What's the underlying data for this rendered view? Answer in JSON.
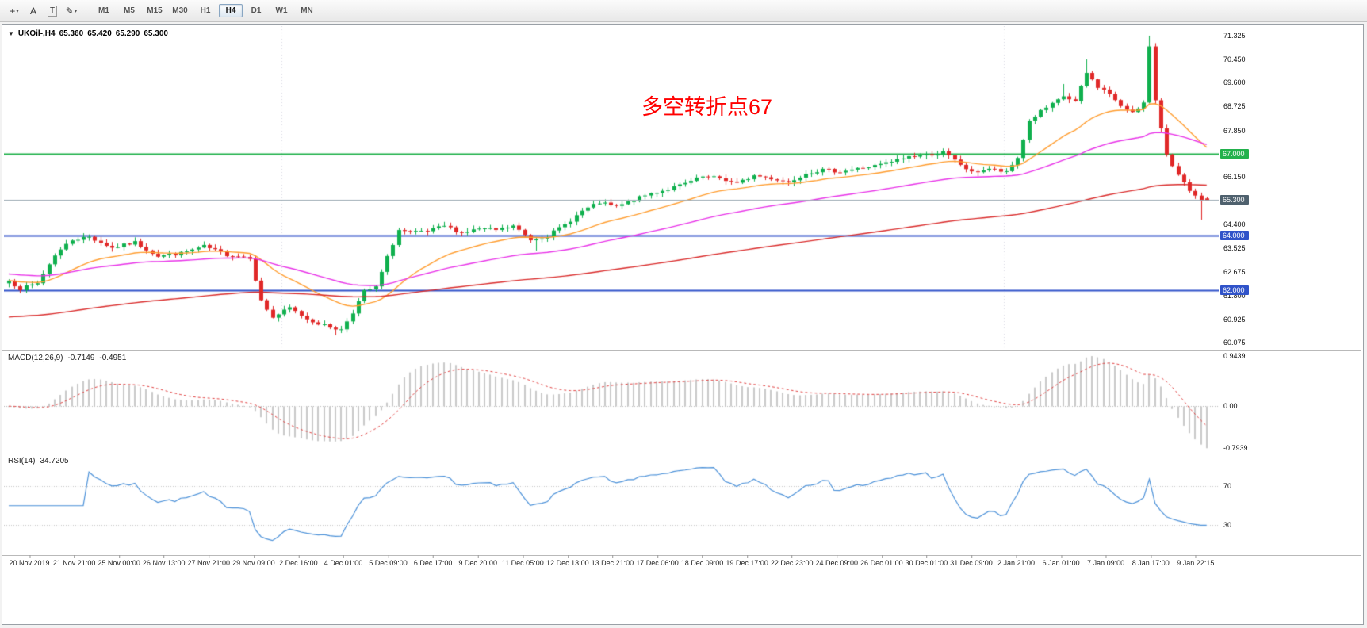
{
  "toolbar": {
    "tools": [
      {
        "id": "crosshair-tool-button",
        "glyph": "+",
        "dropdown": true,
        "boxed": false
      },
      {
        "id": "text-annotation-tool-button",
        "glyph": "A",
        "dropdown": false,
        "boxed": false
      },
      {
        "id": "text-label-tool-button",
        "glyph": "T",
        "dropdown": false,
        "boxed": true
      },
      {
        "id": "draw-tool-button",
        "glyph": "✎",
        "dropdown": true,
        "boxed": false
      }
    ],
    "timeframes": [
      "M1",
      "M5",
      "M15",
      "M30",
      "H1",
      "H4",
      "D1",
      "W1",
      "MN"
    ],
    "active_timeframe": "H4"
  },
  "quote_header": {
    "symbol": "UKOil-,H4",
    "open": "65.360",
    "high": "65.420",
    "low": "65.290",
    "close": "65.300"
  },
  "annotation": {
    "text": "多空转折点67",
    "color": "#ff0000"
  },
  "indicators": {
    "macd": {
      "label": "MACD(12,26,9)",
      "value_main": "-0.7149",
      "value_signal": "-0.4951",
      "axis": [
        {
          "label": "0.9439",
          "value": 0.9439
        },
        {
          "label": "0.00",
          "value": 0
        },
        {
          "label": "-0.7939",
          "value": -0.7939
        }
      ]
    },
    "rsi": {
      "label": "RSI(14)",
      "value": "34.7205",
      "axis": [
        {
          "label": "70",
          "value": 70
        },
        {
          "label": "30",
          "value": 30
        }
      ]
    }
  },
  "chart_data": {
    "type": "candlestick",
    "symbol": "UKOil-",
    "timeframe": "H4",
    "bars": 210,
    "price_range": {
      "min": 59.82,
      "max": 71.67
    },
    "price_axis_labels": [
      "71.325",
      "70.450",
      "69.600",
      "68.725",
      "67.850",
      "66.150",
      "64.400",
      "63.525",
      "62.675",
      "61.800",
      "60.925",
      "60.075"
    ],
    "close_waypoints": [
      [
        0,
        62.35
      ],
      [
        2,
        62.05
      ],
      [
        5,
        62.25
      ],
      [
        8,
        63.3
      ],
      [
        11,
        63.85
      ],
      [
        14,
        63.95
      ],
      [
        18,
        63.55
      ],
      [
        22,
        63.75
      ],
      [
        26,
        63.25
      ],
      [
        30,
        63.35
      ],
      [
        34,
        63.6
      ],
      [
        38,
        63.3
      ],
      [
        42,
        63.2
      ],
      [
        44,
        61.6
      ],
      [
        46,
        61.0
      ],
      [
        49,
        61.35
      ],
      [
        52,
        60.95
      ],
      [
        55,
        60.7
      ],
      [
        58,
        60.55
      ],
      [
        60,
        61.2
      ],
      [
        62,
        61.95
      ],
      [
        64,
        62.1
      ],
      [
        66,
        63.2
      ],
      [
        68,
        64.2
      ],
      [
        70,
        64.1
      ],
      [
        73,
        64.15
      ],
      [
        76,
        64.35
      ],
      [
        79,
        64.1
      ],
      [
        82,
        64.25
      ],
      [
        85,
        64.2
      ],
      [
        88,
        64.35
      ],
      [
        91,
        63.85
      ],
      [
        94,
        64.0
      ],
      [
        97,
        64.4
      ],
      [
        100,
        64.9
      ],
      [
        103,
        65.2
      ],
      [
        106,
        65.05
      ],
      [
        109,
        65.3
      ],
      [
        112,
        65.55
      ],
      [
        115,
        65.7
      ],
      [
        118,
        65.9
      ],
      [
        121,
        66.15
      ],
      [
        124,
        66.1
      ],
      [
        127,
        65.9
      ],
      [
        130,
        66.2
      ],
      [
        133,
        66.1
      ],
      [
        136,
        65.95
      ],
      [
        139,
        66.3
      ],
      [
        142,
        66.4
      ],
      [
        145,
        66.35
      ],
      [
        148,
        66.45
      ],
      [
        151,
        66.55
      ],
      [
        154,
        66.7
      ],
      [
        157,
        66.9
      ],
      [
        160,
        66.95
      ],
      [
        163,
        67.05
      ],
      [
        165,
        66.75
      ],
      [
        168,
        66.3
      ],
      [
        171,
        66.45
      ],
      [
        174,
        66.3
      ],
      [
        176,
        66.85
      ],
      [
        178,
        68.2
      ],
      [
        180,
        68.55
      ],
      [
        182,
        68.8
      ],
      [
        184,
        69.1
      ],
      [
        186,
        68.9
      ],
      [
        188,
        69.95
      ],
      [
        190,
        69.45
      ],
      [
        192,
        69.2
      ],
      [
        194,
        68.7
      ],
      [
        196,
        68.55
      ],
      [
        198,
        68.85
      ],
      [
        199,
        70.9
      ],
      [
        200,
        68.9
      ],
      [
        202,
        67.0
      ],
      [
        204,
        66.2
      ],
      [
        206,
        65.6
      ],
      [
        208,
        65.25
      ],
      [
        209,
        65.3
      ]
    ],
    "wick_overrides": [
      {
        "i": 57,
        "low": 60.35
      },
      {
        "i": 92,
        "low": 63.45
      },
      {
        "i": 184,
        "high": 69.55
      },
      {
        "i": 188,
        "high": 70.45
      },
      {
        "i": 199,
        "high": 71.32
      },
      {
        "i": 208,
        "low": 64.58
      }
    ],
    "hlines": [
      {
        "price": 67.0,
        "color": "#22b14c",
        "tag": "67.000",
        "width": 2
      },
      {
        "price": 64.0,
        "color": "#3053c9",
        "tag": "64.000",
        "width": 2
      },
      {
        "price": 62.0,
        "color": "#3053c9",
        "tag": "62.000",
        "width": 2
      }
    ],
    "current_price": {
      "price": 65.3,
      "tag": "65.300",
      "line_color": "#9aa8b2",
      "tag_bg": "#4f616e"
    },
    "moving_averages": [
      {
        "period": 22,
        "color": "#ff9c2e",
        "init": 62.35
      },
      {
        "period": 60,
        "color": "#e832e8",
        "init": 62.6
      },
      {
        "period": 170,
        "color": "#d92b2b",
        "init": 61.0
      }
    ],
    "separators": [
      48,
      174
    ],
    "candle_up_color": "#10b04e",
    "candle_down_color": "#e02828",
    "macd_range": [
      -0.88,
      1.02
    ],
    "rsi_range": [
      0,
      102
    ],
    "colors": {
      "macd_hist": "#c9c9c9",
      "macd_signal": "#e04040",
      "rsi_line": "#4a90d8",
      "grid_dotted": "#c4c4c4"
    },
    "time_axis_labels": [
      "20 Nov 2019",
      "21 Nov 21:00",
      "25 Nov 00:00",
      "26 Nov 13:00",
      "27 Nov 21:00",
      "29 Nov 09:00",
      "2 Dec 16:00",
      "4 Dec 01:00",
      "5 Dec 09:00",
      "6 Dec 17:00",
      "9 Dec 20:00",
      "11 Dec 05:00",
      "12 Dec 13:00",
      "13 Dec 21:00",
      "17 Dec 06:00",
      "18 Dec 09:00",
      "19 Dec 17:00",
      "22 Dec 23:00",
      "24 Dec 09:00",
      "26 Dec 01:00",
      "30 Dec 01:00",
      "31 Dec 09:00",
      "2 Jan 21:00",
      "6 Jan 01:00",
      "7 Jan 09:00",
      "8 Jan 17:00",
      "9 Jan 22:15"
    ]
  }
}
